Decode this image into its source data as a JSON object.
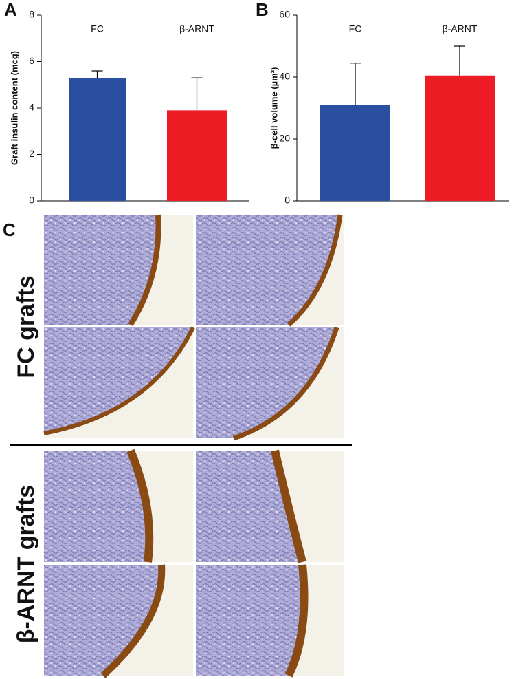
{
  "panel_labels": [
    "A",
    "B",
    "C"
  ],
  "micrograph_rows": [
    "FC grafts",
    "β-ARNT grafts"
  ],
  "chart_data": [
    {
      "type": "bar",
      "ylabel": "Graft insulin content (mcg)",
      "categories": [
        "FC",
        "β-ARNT"
      ],
      "values": [
        5.3,
        3.9
      ],
      "errors": [
        0.3,
        1.4
      ],
      "colors": [
        "#2a4fa0",
        "#ee1c25"
      ],
      "ylim": [
        0,
        8
      ],
      "yticks": [
        0,
        2,
        4,
        6,
        8
      ]
    },
    {
      "type": "bar",
      "ylabel": "β-cell volume (µm²)",
      "categories": [
        "FC",
        "β-ARNT"
      ],
      "values": [
        31,
        40.5
      ],
      "errors": [
        13.5,
        9.5
      ],
      "colors": [
        "#2a4fa0",
        "#ee1c25"
      ],
      "ylim": [
        0,
        60
      ],
      "yticks": [
        0,
        20,
        40,
        60
      ]
    }
  ]
}
